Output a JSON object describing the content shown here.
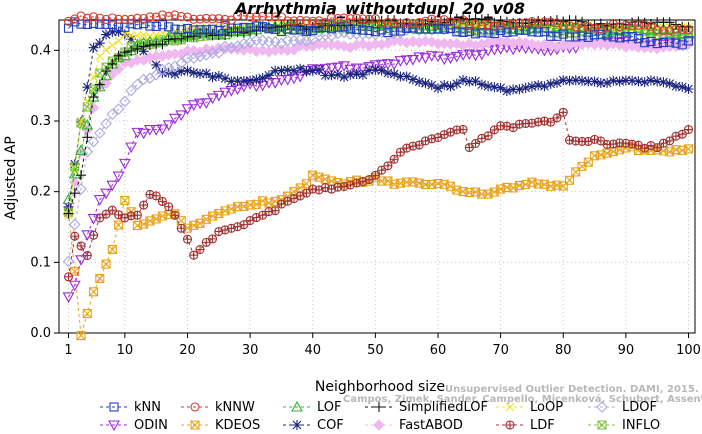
{
  "chart_data": {
    "type": "line",
    "title": "Arrhythmia_withoutdupl_20_v08",
    "xlabel": "Neighborhood size",
    "ylabel": "Adjusted AP",
    "xlim": [
      1,
      100
    ],
    "ylim": [
      0,
      0.45
    ],
    "xticks": [
      1,
      10,
      20,
      30,
      40,
      50,
      60,
      70,
      80,
      90,
      100
    ],
    "yticks": [
      0.0,
      0.1,
      0.2,
      0.3,
      0.4
    ],
    "ytick_labels": [
      "0.0",
      "0.1",
      "0.2",
      "0.3",
      "0.4"
    ],
    "grid": true,
    "legend_position": "bottom",
    "watermark": [
      "Unsupervised Outlier Detection. DAMI, 2015.",
      "Campos, Zimek, Sander, Campello, Micenková, Schubert, Assent, Houle"
    ],
    "series": [
      {
        "name": "kNN",
        "color": "#1f3fbf",
        "marker": "square",
        "keypoints": [
          [
            1,
            0.43
          ],
          [
            2,
            0.44
          ],
          [
            5,
            0.44
          ],
          [
            10,
            0.435
          ],
          [
            20,
            0.432
          ],
          [
            40,
            0.43
          ],
          [
            60,
            0.428
          ],
          [
            80,
            0.423
          ],
          [
            100,
            0.41
          ]
        ]
      },
      {
        "name": "kNNW",
        "color": "#d43a2a",
        "marker": "circle",
        "keypoints": [
          [
            1,
            0.44
          ],
          [
            3,
            0.445
          ],
          [
            10,
            0.447
          ],
          [
            30,
            0.445
          ],
          [
            60,
            0.44
          ],
          [
            80,
            0.436
          ],
          [
            100,
            0.43
          ]
        ]
      },
      {
        "name": "LOF",
        "color": "#2fb82f",
        "marker": "triangle-up",
        "keypoints": [
          [
            1,
            0.19
          ],
          [
            3,
            0.255
          ],
          [
            5,
            0.33
          ],
          [
            8,
            0.38
          ],
          [
            12,
            0.41
          ],
          [
            20,
            0.42
          ],
          [
            30,
            0.43
          ],
          [
            50,
            0.435
          ],
          [
            70,
            0.433
          ],
          [
            100,
            0.425
          ]
        ]
      },
      {
        "name": "SimplifiedLOF",
        "color": "#111111",
        "marker": "plus",
        "keypoints": [
          [
            1,
            0.17
          ],
          [
            3,
            0.22
          ],
          [
            5,
            0.33
          ],
          [
            7,
            0.37
          ],
          [
            10,
            0.4
          ],
          [
            15,
            0.41
          ],
          [
            25,
            0.425
          ],
          [
            50,
            0.44
          ],
          [
            70,
            0.442
          ],
          [
            100,
            0.435
          ]
        ]
      },
      {
        "name": "LoOP",
        "color": "#f0e020",
        "marker": "x",
        "keypoints": [
          [
            1,
            0.17
          ],
          [
            3,
            0.3
          ],
          [
            6,
            0.39
          ],
          [
            10,
            0.42
          ],
          [
            20,
            0.43
          ],
          [
            40,
            0.435
          ],
          [
            70,
            0.435
          ],
          [
            100,
            0.43
          ]
        ]
      },
      {
        "name": "LDOF",
        "color": "#a9a9e0",
        "marker": "diamond",
        "keypoints": [
          [
            1,
            0.1
          ],
          [
            4,
            0.26
          ],
          [
            8,
            0.31
          ],
          [
            12,
            0.35
          ],
          [
            20,
            0.39
          ],
          [
            30,
            0.41
          ],
          [
            50,
            0.425
          ],
          [
            70,
            0.43
          ],
          [
            100,
            0.425
          ]
        ]
      },
      {
        "name": "ODIN",
        "color": "#9a2ad8",
        "marker": "triangle-down",
        "keypoints": [
          [
            1,
            0.05
          ],
          [
            2,
            0.07
          ],
          [
            4,
            0.14
          ],
          [
            6,
            0.19
          ],
          [
            9,
            0.22
          ],
          [
            12,
            0.28
          ],
          [
            16,
            0.29
          ],
          [
            20,
            0.32
          ],
          [
            30,
            0.35
          ],
          [
            40,
            0.37
          ],
          [
            50,
            0.38
          ],
          [
            60,
            0.39
          ],
          [
            70,
            0.4
          ],
          [
            80,
            0.405
          ],
          [
            90,
            0.41
          ],
          [
            100,
            0.41
          ]
        ]
      },
      {
        "name": "KDEOS",
        "color": "#e8a21a",
        "marker": "square-x",
        "keypoints": [
          [
            1,
            0.17
          ],
          [
            3,
            0.0
          ],
          [
            5,
            0.06
          ],
          [
            8,
            0.12
          ],
          [
            10,
            0.19
          ],
          [
            12,
            0.15
          ],
          [
            15,
            0.16
          ],
          [
            18,
            0.17
          ],
          [
            20,
            0.15
          ],
          [
            25,
            0.17
          ],
          [
            30,
            0.18
          ],
          [
            35,
            0.19
          ],
          [
            40,
            0.22
          ],
          [
            45,
            0.21
          ],
          [
            50,
            0.22
          ],
          [
            55,
            0.21
          ],
          [
            60,
            0.21
          ],
          [
            65,
            0.2
          ],
          [
            70,
            0.2
          ],
          [
            75,
            0.21
          ],
          [
            80,
            0.21
          ],
          [
            82,
            0.23
          ],
          [
            85,
            0.25
          ],
          [
            90,
            0.26
          ],
          [
            95,
            0.26
          ],
          [
            100,
            0.26
          ]
        ]
      },
      {
        "name": "COF",
        "color": "#1a237e",
        "marker": "star",
        "keypoints": [
          [
            1,
            0.18
          ],
          [
            3,
            0.3
          ],
          [
            5,
            0.4
          ],
          [
            7,
            0.42
          ],
          [
            9,
            0.425
          ],
          [
            11,
            0.415
          ],
          [
            13,
            0.4
          ],
          [
            16,
            0.37
          ],
          [
            20,
            0.37
          ],
          [
            25,
            0.36
          ],
          [
            30,
            0.36
          ],
          [
            35,
            0.37
          ],
          [
            40,
            0.37
          ],
          [
            45,
            0.365
          ],
          [
            50,
            0.37
          ],
          [
            55,
            0.36
          ],
          [
            60,
            0.35
          ],
          [
            65,
            0.355
          ],
          [
            70,
            0.345
          ],
          [
            75,
            0.35
          ],
          [
            80,
            0.355
          ],
          [
            85,
            0.355
          ],
          [
            90,
            0.36
          ],
          [
            95,
            0.355
          ],
          [
            100,
            0.345
          ]
        ]
      },
      {
        "name": "FastABOD",
        "color": "#f0b8f0",
        "marker": "diamond-filled",
        "keypoints": [
          [
            1,
            0.17
          ],
          [
            3,
            0.26
          ],
          [
            6,
            0.35
          ],
          [
            10,
            0.38
          ],
          [
            15,
            0.39
          ],
          [
            20,
            0.4
          ],
          [
            30,
            0.4
          ],
          [
            40,
            0.405
          ],
          [
            50,
            0.41
          ],
          [
            70,
            0.41
          ],
          [
            100,
            0.405
          ]
        ]
      },
      {
        "name": "LDF",
        "color": "#a03030",
        "marker": "circle-plus",
        "keypoints": [
          [
            1,
            0.08
          ],
          [
            2,
            0.14
          ],
          [
            4,
            0.11
          ],
          [
            6,
            0.16
          ],
          [
            8,
            0.17
          ],
          [
            10,
            0.16
          ],
          [
            12,
            0.165
          ],
          [
            14,
            0.2
          ],
          [
            16,
            0.19
          ],
          [
            18,
            0.17
          ],
          [
            21,
            0.11
          ],
          [
            25,
            0.14
          ],
          [
            30,
            0.16
          ],
          [
            35,
            0.18
          ],
          [
            40,
            0.2
          ],
          [
            45,
            0.21
          ],
          [
            50,
            0.22
          ],
          [
            55,
            0.26
          ],
          [
            60,
            0.28
          ],
          [
            64,
            0.29
          ],
          [
            65,
            0.26
          ],
          [
            70,
            0.29
          ],
          [
            75,
            0.3
          ],
          [
            78,
            0.3
          ],
          [
            80,
            0.31
          ],
          [
            81,
            0.27
          ],
          [
            85,
            0.27
          ],
          [
            90,
            0.27
          ],
          [
            95,
            0.26
          ],
          [
            100,
            0.285
          ]
        ]
      },
      {
        "name": "INFLO",
        "color": "#7fbf3f",
        "marker": "square-x",
        "keypoints": [
          [
            1,
            0.17
          ],
          [
            3,
            0.3
          ],
          [
            6,
            0.37
          ],
          [
            10,
            0.4
          ],
          [
            20,
            0.42
          ],
          [
            30,
            0.43
          ],
          [
            50,
            0.435
          ],
          [
            70,
            0.43
          ],
          [
            100,
            0.425
          ]
        ]
      }
    ]
  }
}
